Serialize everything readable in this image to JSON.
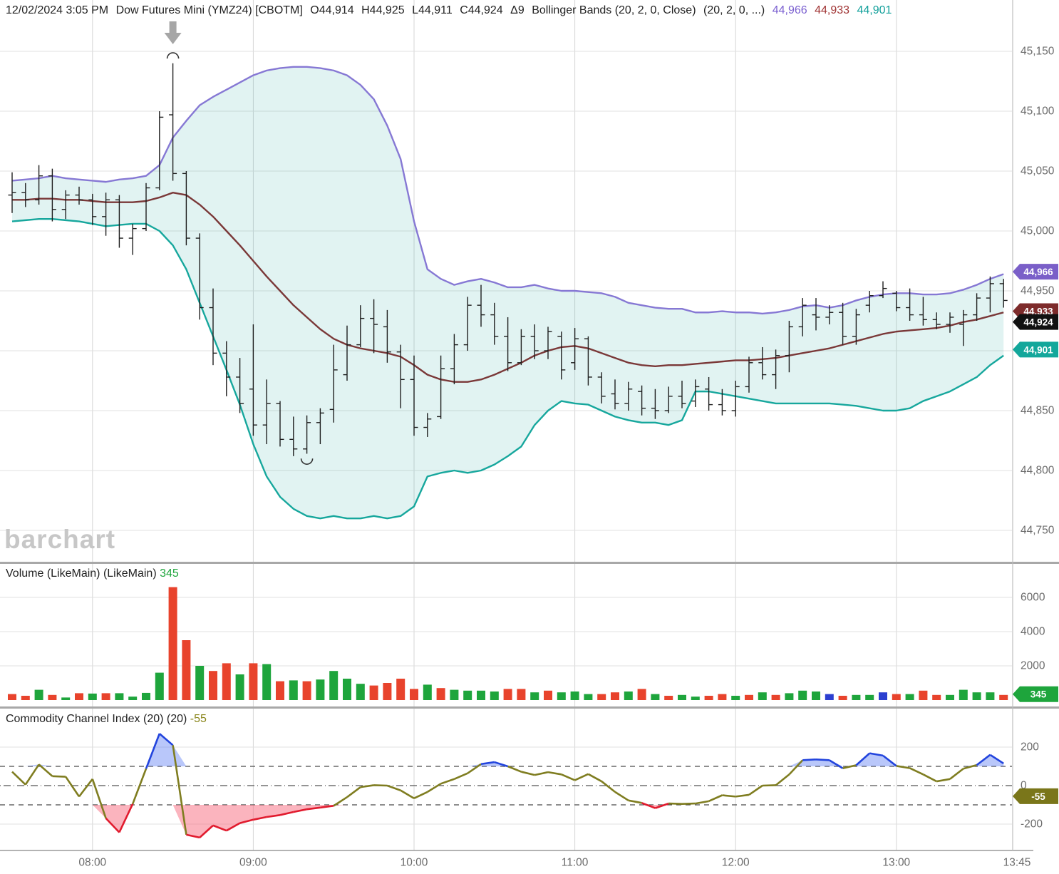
{
  "header": {
    "datetime": "12/02/2024 3:05 PM",
    "symbol": "Dow Futures Mini (YMZ24) [CBOTM]",
    "open": "O44,914",
    "high": "H44,925",
    "low": "L44,911",
    "close": "C44,924",
    "delta": "Δ9",
    "study": "Bollinger Bands (20, 2, 0, Close)",
    "study_params": "(20, 2, 0, ...)",
    "bb_upper_value": "44,966",
    "bb_middle_value": "44,933",
    "bb_lower_value": "44,901"
  },
  "watermark": "barchart",
  "volume_panel": {
    "title": "Volume (LikeMain)",
    "title_params": "(LikeMain)",
    "current_value": "345"
  },
  "cci_panel": {
    "title": "Commodity Channel Index (20)",
    "title_params": "(20)",
    "current_value": "-55"
  },
  "colors": {
    "bb_upper": "#8678d4",
    "bb_middle": "#7a3838",
    "bb_lower": "#17a79d",
    "bb_fill": "rgba(24,160,153,0.13)",
    "price_bar": "#1e1e1e",
    "vol_up": "#1ea53c",
    "vol_down": "#e8432c",
    "vol_neutral": "#2b3fd0",
    "cci_line": "#7f7d20",
    "cci_over": "#2244dd",
    "cci_under": "#e11b2e",
    "cci_over_fill": "rgba(100,130,245,0.45)",
    "cci_under_fill": "rgba(248,105,125,0.50)",
    "grid": "#e0e0e0",
    "grid_vert": "#d6d6d6",
    "axis_text": "#6b6b6b",
    "separator": "#a8a8a8",
    "annotation": "#a6a6a6",
    "badge_upper": "#7a5fc8",
    "badge_middle": "#7d2b2b",
    "badge_last": "#111111",
    "badge_lower": "#13a79b",
    "badge_volume": "#1ea53c",
    "badge_cci": "#7a761a"
  },
  "chart_data": [
    {
      "type": "ohlc",
      "title": "Dow Futures Mini (YMZ24) 5-minute with Bollinger Bands (20,2)",
      "ylim": [
        44750,
        45150
      ],
      "y_gridlines": [
        45150,
        45100,
        45050,
        45000,
        44950,
        44900,
        44850,
        44800,
        44750
      ],
      "y_tick_labels": [
        {
          "label": "45,150",
          "value": 45150
        },
        {
          "label": "45,100",
          "value": 45100
        },
        {
          "label": "45,050",
          "value": 45050
        },
        {
          "label": "45,000",
          "value": 45000
        },
        {
          "label": "44,950",
          "value": 44950
        },
        {
          "label": "44,850",
          "value": 44850
        },
        {
          "label": "44,800",
          "value": 44800
        },
        {
          "label": "44,750",
          "value": 44750
        }
      ],
      "x_ticks": [
        {
          "label": "08:00",
          "index": 6,
          "grid": true
        },
        {
          "label": "09:00",
          "index": 18,
          "grid": true
        },
        {
          "label": "10:00",
          "index": 30,
          "grid": true
        },
        {
          "label": "11:00",
          "index": 42,
          "grid": true
        },
        {
          "label": "12:00",
          "index": 54,
          "grid": true
        },
        {
          "label": "13:45",
          "index": 75,
          "grid": false
        }
      ],
      "x_ticks_extra": {
        "label": "13:00",
        "index": 66,
        "grid": true
      },
      "times": [
        "07:30",
        "07:35",
        "07:40",
        "07:45",
        "07:50",
        "07:55",
        "08:00",
        "08:05",
        "08:10",
        "08:15",
        "08:20",
        "08:25",
        "08:30",
        "08:35",
        "08:40",
        "08:45",
        "08:50",
        "08:55",
        "09:00",
        "09:05",
        "09:10",
        "09:15",
        "09:20",
        "09:25",
        "09:30",
        "09:35",
        "09:40",
        "09:45",
        "09:50",
        "09:55",
        "10:00",
        "10:05",
        "10:10",
        "10:15",
        "10:20",
        "10:25",
        "10:30",
        "10:35",
        "10:40",
        "10:45",
        "10:50",
        "10:55",
        "11:00",
        "11:05",
        "11:10",
        "11:15",
        "11:20",
        "11:25",
        "11:30",
        "11:35",
        "11:40",
        "11:45",
        "11:50",
        "11:55",
        "12:00",
        "12:05",
        "12:10",
        "12:15",
        "12:20",
        "12:25",
        "12:30",
        "12:35",
        "12:40",
        "12:45",
        "12:50",
        "12:55",
        "13:00",
        "13:05",
        "13:10",
        "13:15",
        "13:20",
        "13:25",
        "13:30",
        "13:35",
        "13:40"
      ],
      "ohlc": [
        [
          45030,
          45049,
          45015,
          45032
        ],
        [
          45032,
          45040,
          45020,
          45026
        ],
        [
          45026,
          45055,
          45022,
          45046
        ],
        [
          45046,
          45052,
          45008,
          45018
        ],
        [
          45018,
          45034,
          45010,
          45030
        ],
        [
          45030,
          45037,
          45022,
          45026
        ],
        [
          45026,
          45031,
          45005,
          45012
        ],
        [
          45012,
          45032,
          44996,
          45026
        ],
        [
          45026,
          45030,
          44986,
          44994
        ],
        [
          44994,
          45006,
          44980,
          45002
        ],
        [
          45002,
          45040,
          45000,
          45036
        ],
        [
          45036,
          45100,
          45034,
          45095
        ],
        [
          45097,
          45140,
          45042,
          45048
        ],
        [
          45048,
          45050,
          44988,
          44994
        ],
        [
          44994,
          44998,
          44926,
          44936
        ],
        [
          44936,
          44952,
          44888,
          44898
        ],
        [
          44898,
          44908,
          44862,
          44878
        ],
        [
          44878,
          44894,
          44848,
          44856
        ],
        [
          44868,
          44922,
          44829,
          44838
        ],
        [
          44838,
          44876,
          44822,
          44856
        ],
        [
          44856,
          44858,
          44820,
          44826
        ],
        [
          44826,
          44845,
          44812,
          44818
        ],
        [
          44818,
          44846,
          44814,
          44840
        ],
        [
          44840,
          44852,
          44822,
          44848
        ],
        [
          44851,
          44905,
          44840,
          44884
        ],
        [
          44880,
          44921,
          44875,
          44905
        ],
        [
          44905,
          44938,
          44903,
          44927
        ],
        [
          44927,
          44943,
          44898,
          44922
        ],
        [
          44920,
          44934,
          44890,
          44899
        ],
        [
          44899,
          44905,
          44852,
          44876
        ],
        [
          44876,
          44896,
          44829,
          44836
        ],
        [
          44836,
          44848,
          44828,
          44843
        ],
        [
          44845,
          44896,
          44843,
          44885
        ],
        [
          44885,
          44914,
          44872,
          44905
        ],
        [
          44905,
          44945,
          44900,
          44938
        ],
        [
          44938,
          44955,
          44920,
          44930
        ],
        [
          44930,
          44940,
          44905,
          44912
        ],
        [
          44912,
          44928,
          44883,
          44890
        ],
        [
          44890,
          44918,
          44888,
          44912
        ],
        [
          44912,
          44922,
          44893,
          44900
        ],
        [
          44900,
          44920,
          44893,
          44916
        ],
        [
          44912,
          44916,
          44876,
          44884
        ],
        [
          44890,
          44919,
          44884,
          44910
        ],
        [
          44910,
          44912,
          44871,
          44878
        ],
        [
          44878,
          44882,
          44856,
          44862
        ],
        [
          44864,
          44876,
          44851,
          44856
        ],
        [
          44856,
          44874,
          44850,
          44868
        ],
        [
          44866,
          44871,
          44846,
          44852
        ],
        [
          44852,
          44868,
          44843,
          44850
        ],
        [
          44850,
          44870,
          44848,
          44862
        ],
        [
          44862,
          44875,
          44852,
          44856
        ],
        [
          44858,
          44876,
          44853,
          44870
        ],
        [
          44868,
          44878,
          44850,
          44855
        ],
        [
          44855,
          44868,
          44846,
          44850
        ],
        [
          44850,
          44875,
          44845,
          44870
        ],
        [
          44870,
          44895,
          44865,
          44890
        ],
        [
          44890,
          44903,
          44876,
          44880
        ],
        [
          44880,
          44901,
          44868,
          44896
        ],
        [
          44896,
          44925,
          44882,
          44920
        ],
        [
          44920,
          44944,
          44912,
          44938
        ],
        [
          44930,
          44944,
          44917,
          44928
        ],
        [
          44928,
          44938,
          44922,
          44932
        ],
        [
          44932,
          44940,
          44905,
          44912
        ],
        [
          44912,
          44935,
          44905,
          44930
        ],
        [
          44938,
          44950,
          44932,
          44946
        ],
        [
          44946,
          44958,
          44944,
          44952
        ],
        [
          44948,
          44950,
          44933,
          44936
        ],
        [
          44936,
          44952,
          44925,
          44930
        ],
        [
          44930,
          44945,
          44921,
          44926
        ],
        [
          44926,
          44932,
          44918,
          44922
        ],
        [
          44922,
          44932,
          44915,
          44928
        ],
        [
          44922,
          44934,
          44904,
          44930
        ],
        [
          44930,
          44948,
          44925,
          44944
        ],
        [
          44944,
          44962,
          44932,
          44956
        ],
        [
          44956,
          44960,
          44936,
          44942
        ]
      ],
      "bollinger": {
        "upper": [
          45042,
          45043,
          45044,
          45046,
          45044,
          45043,
          45042,
          45041,
          45043,
          45044,
          45046,
          45055,
          45078,
          45092,
          45105,
          45112,
          45118,
          45124,
          45130,
          45134,
          45136,
          45137,
          45137,
          45136,
          45134,
          45130,
          45122,
          45110,
          45088,
          45060,
          45008,
          44968,
          44960,
          44955,
          44958,
          44960,
          44957,
          44953,
          44953,
          44955,
          44952,
          44950,
          44950,
          44949,
          44948,
          44945,
          44940,
          44938,
          44936,
          44935,
          44935,
          44932,
          44932,
          44933,
          44932,
          44932,
          44931,
          44932,
          44934,
          44937,
          44938,
          44936,
          44938,
          44942,
          44945,
          44947,
          44948,
          44948,
          44947,
          44947,
          44948,
          44951,
          44955,
          44960,
          44964
        ],
        "middle": [
          45026,
          45026,
          45027,
          45027,
          45026,
          45026,
          45025,
          45024,
          45024,
          45024,
          45025,
          45028,
          45032,
          45030,
          45022,
          45012,
          45000,
          44988,
          44975,
          44962,
          44950,
          44938,
          44928,
          44918,
          44910,
          44905,
          44902,
          44900,
          44898,
          44895,
          44888,
          44880,
          44876,
          44874,
          44874,
          44876,
          44880,
          44885,
          44890,
          44896,
          44900,
          44903,
          44904,
          44902,
          44898,
          44894,
          44890,
          44888,
          44887,
          44888,
          44888,
          44889,
          44890,
          44891,
          44892,
          44892,
          44893,
          44894,
          44896,
          44898,
          44900,
          44902,
          44905,
          44908,
          44911,
          44914,
          44916,
          44917,
          44918,
          44919,
          44921,
          44924,
          44926,
          44929,
          44932
        ],
        "lower": [
          45008,
          45009,
          45010,
          45010,
          45009,
          45008,
          45006,
          45004,
          45005,
          45006,
          45006,
          45000,
          44988,
          44968,
          44940,
          44912,
          44884,
          44855,
          44822,
          44795,
          44778,
          44768,
          44762,
          44760,
          44762,
          44760,
          44760,
          44762,
          44760,
          44762,
          44770,
          44795,
          44798,
          44800,
          44798,
          44800,
          44805,
          44812,
          44820,
          44838,
          44850,
          44858,
          44856,
          44855,
          44850,
          44845,
          44842,
          44840,
          44840,
          44838,
          44842,
          44866,
          44866,
          44864,
          44862,
          44860,
          44858,
          44856,
          44856,
          44856,
          44856,
          44856,
          44855,
          44854,
          44852,
          44850,
          44850,
          44852,
          44858,
          44862,
          44866,
          44872,
          44878,
          44888,
          44896
        ]
      },
      "badges": [
        {
          "label": "44,966",
          "value": 44966,
          "color_key": "badge_upper"
        },
        {
          "label": "44,933",
          "value": 44933,
          "color_key": "badge_middle"
        },
        {
          "label": "44,924",
          "value": 44924,
          "color_key": "badge_last"
        },
        {
          "label": "44,901",
          "value": 44901,
          "color_key": "badge_lower"
        }
      ],
      "annotations": [
        {
          "kind": "down-arrow",
          "bar": 12
        },
        {
          "kind": "arc-over",
          "bar": 12,
          "price": 45144
        },
        {
          "kind": "arc-under",
          "bar": 22,
          "price": 44810
        }
      ]
    },
    {
      "type": "bar",
      "title": "Volume (LikeMain)",
      "ylim": [
        0,
        7200
      ],
      "y_tick_labels": [
        {
          "label": "6000",
          "value": 6000
        },
        {
          "label": "4000",
          "value": 4000
        },
        {
          "label": "2000",
          "value": 2000
        }
      ],
      "values": [
        350,
        250,
        600,
        300,
        150,
        400,
        380,
        400,
        400,
        200,
        420,
        1600,
        6600,
        3500,
        2000,
        1700,
        2150,
        1500,
        2150,
        2100,
        1100,
        1150,
        1100,
        1200,
        1700,
        1250,
        950,
        850,
        1000,
        1250,
        650,
        900,
        700,
        600,
        550,
        550,
        500,
        650,
        650,
        450,
        550,
        450,
        500,
        350,
        350,
        450,
        500,
        650,
        350,
        250,
        300,
        200,
        250,
        350,
        250,
        300,
        450,
        300,
        400,
        550,
        500,
        350,
        250,
        300,
        300,
        450,
        350,
        350,
        550,
        300,
        300,
        600,
        450,
        450,
        300
      ],
      "bar_colors": [
        "r",
        "r",
        "g",
        "r",
        "g",
        "r",
        "g",
        "r",
        "g",
        "g",
        "g",
        "g",
        "r",
        "r",
        "g",
        "r",
        "r",
        "g",
        "r",
        "g",
        "r",
        "g",
        "r",
        "g",
        "g",
        "g",
        "g",
        "r",
        "r",
        "r",
        "r",
        "g",
        "r",
        "g",
        "g",
        "g",
        "g",
        "r",
        "r",
        "g",
        "r",
        "g",
        "g",
        "g",
        "r",
        "r",
        "g",
        "r",
        "g",
        "r",
        "g",
        "g",
        "r",
        "r",
        "g",
        "r",
        "g",
        "r",
        "g",
        "g",
        "g",
        "b",
        "r",
        "g",
        "g",
        "b",
        "r",
        "g",
        "r",
        "r",
        "g",
        "g",
        "g",
        "g",
        "r"
      ],
      "badge": {
        "label": "345",
        "value": 345,
        "color_key": "badge_volume"
      }
    },
    {
      "type": "line",
      "title": "Commodity Channel Index (20)",
      "ylim": [
        -330,
        330
      ],
      "levels": {
        "upper_band": 100,
        "zero": 0,
        "lower_band": -100,
        "grid_hi": 200,
        "grid_lo": -200
      },
      "y_tick_labels": [
        {
          "label": "200",
          "value": 200
        },
        {
          "label": "0",
          "value": 0
        },
        {
          "label": "-200",
          "value": -200
        }
      ],
      "values": [
        72,
        5,
        110,
        49,
        46,
        -57,
        34,
        -170,
        -243,
        -95,
        88,
        270,
        210,
        -255,
        -270,
        -207,
        -234,
        -195,
        -177,
        -163,
        -153,
        -137,
        -123,
        -114,
        -105,
        -60,
        -8,
        2,
        0,
        -25,
        -66,
        -33,
        10,
        34,
        64,
        112,
        122,
        100,
        72,
        55,
        70,
        58,
        28,
        60,
        22,
        -33,
        -77,
        -90,
        -117,
        -93,
        -95,
        -93,
        -81,
        -50,
        -57,
        -48,
        0,
        2,
        58,
        132,
        136,
        132,
        90,
        106,
        168,
        156,
        102,
        91,
        58,
        22,
        34,
        88,
        107,
        160,
        115
      ],
      "badge": {
        "label": "-55",
        "value": -55,
        "color_key": "badge_cci"
      }
    }
  ]
}
